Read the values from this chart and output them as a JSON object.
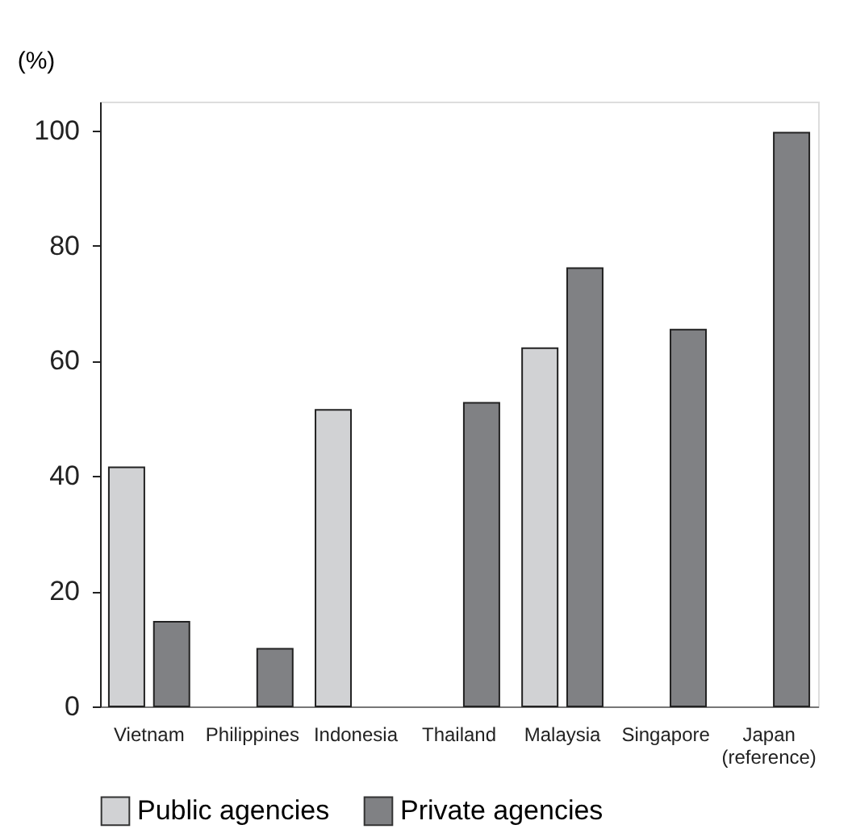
{
  "chart_data": {
    "type": "bar",
    "ylabel": "(%)",
    "categories": [
      "Vietnam",
      "Philippines",
      "Indonesia",
      "Thailand",
      "Malaysia",
      "Singapore",
      "Japan\n(reference)"
    ],
    "series": [
      {
        "name": "Public agencies",
        "color": "#d1d2d4",
        "values": [
          41.5,
          null,
          51.5,
          null,
          62.2,
          null,
          null
        ]
      },
      {
        "name": "Private agencies",
        "color": "#808184",
        "values": [
          14.7,
          10,
          null,
          52.7,
          76.1,
          65.4,
          99.6
        ]
      }
    ],
    "ylim": [
      0,
      105
    ],
    "yticks": [
      0,
      20,
      40,
      60,
      80,
      100
    ],
    "grid": false,
    "legend": "bottom"
  }
}
